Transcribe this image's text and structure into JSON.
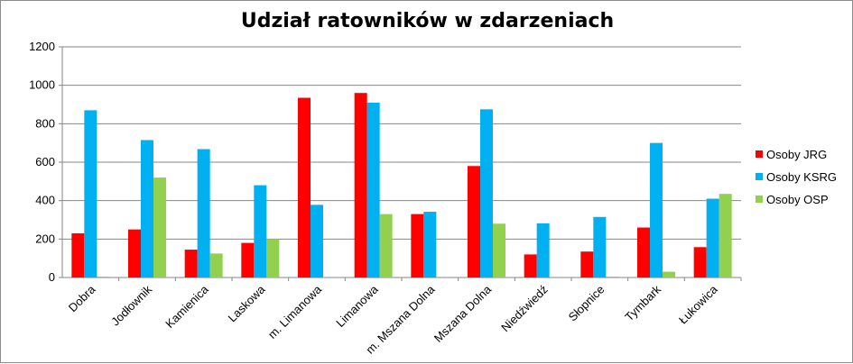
{
  "chart_data": {
    "type": "bar",
    "title": "Udział ratowników w zdarzeniach",
    "xlabel": "",
    "ylabel": "",
    "ylim": [
      0,
      1200
    ],
    "yticks": [
      0,
      200,
      400,
      600,
      800,
      1000,
      1200
    ],
    "grid": "horizontal",
    "legend_position": "right",
    "categories": [
      "Dobra",
      "Jodłownik",
      "Kamienica",
      "Laskowa",
      "m. Limanowa",
      "Limanowa",
      "m. Mszana Dolna",
      "Mszana Dolna",
      "Niedźwiedź",
      "Słopnice",
      "Tymbark",
      "Łukowica"
    ],
    "series": [
      {
        "name": "Osoby JRG",
        "color": "#ff0000",
        "values": [
          230,
          250,
          145,
          180,
          935,
          960,
          330,
          580,
          120,
          135,
          260,
          158
        ]
      },
      {
        "name": "Osoby KSRG",
        "color": "#00b0f0",
        "values": [
          870,
          715,
          668,
          480,
          378,
          910,
          342,
          875,
          282,
          315,
          700,
          410
        ]
      },
      {
        "name": "Osoby OSP",
        "color": "#92d050",
        "values": [
          3,
          520,
          125,
          200,
          0,
          330,
          0,
          280,
          0,
          3,
          30,
          435
        ]
      }
    ]
  }
}
